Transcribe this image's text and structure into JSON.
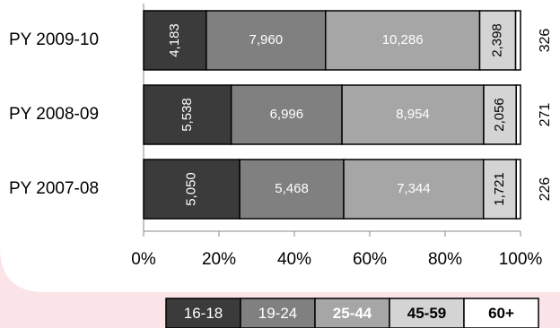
{
  "chart_data": {
    "type": "stacked-percent-bar",
    "categories": [
      "PY 2009-10",
      "PY 2008-09",
      "PY 2007-08"
    ],
    "series": [
      {
        "name": "16-18",
        "color": "#3b3b3b",
        "values": [
          4183,
          5538,
          5050
        ],
        "value_labels": [
          "4,183",
          "5,538",
          "5,050"
        ]
      },
      {
        "name": "19-24",
        "color": "#808080",
        "values": [
          7960,
          6996,
          5468
        ],
        "value_labels": [
          "7,960",
          "6,996",
          "5,468"
        ]
      },
      {
        "name": "25-44",
        "color": "#a6a6a6",
        "values": [
          10286,
          8954,
          7344
        ],
        "value_labels": [
          "10,286",
          "8,954",
          "7,344"
        ]
      },
      {
        "name": "45-59",
        "color": "#d4d4d4",
        "values": [
          2398,
          2056,
          1721
        ],
        "value_labels": [
          "2,398",
          "2,056",
          "1,721"
        ]
      },
      {
        "name": "60+",
        "color": "#ffffff",
        "values": [
          326,
          271,
          226
        ]
      }
    ],
    "xlim": [
      0,
      100
    ],
    "xticks": [
      {
        "value": 0,
        "label": "0%"
      },
      {
        "value": 20,
        "label": "20%"
      },
      {
        "value": 40,
        "label": "40%"
      },
      {
        "value": 60,
        "label": "60%"
      },
      {
        "value": 80,
        "label": "80%"
      },
      {
        "value": 100,
        "label": "100%"
      }
    ],
    "legend": "bottom"
  }
}
